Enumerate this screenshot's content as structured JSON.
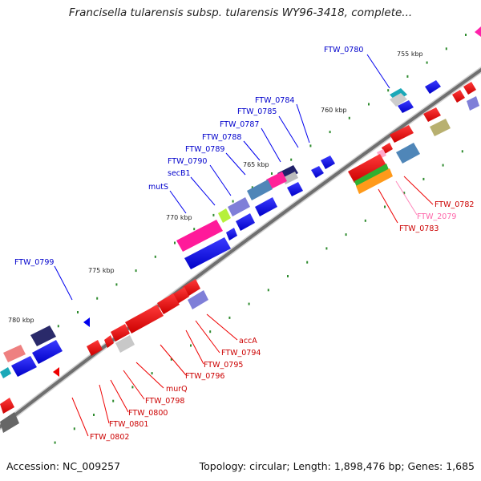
{
  "title": "Francisella tularensis subsp. tularensis WY96-3418, complete...",
  "footer": {
    "accession": "Accession: NC_009257",
    "summary": "Topology: circular; Length: 1,898,476 bp; Genes: 1,685"
  },
  "colors": {
    "forward_strand": "#0000ee",
    "reverse_strand": "#ee0000",
    "label_forward": "#0000cc",
    "label_reverse": "#cc0000",
    "label_pseudo": "#ff66aa",
    "backbone": "#777777",
    "tick": "#2e8b2e"
  },
  "kbp_labels": [
    "755 kbp",
    "760 kbp",
    "765 kbp",
    "770 kbp",
    "775 kbp",
    "780 kbp"
  ],
  "gene_labels_top": [
    "FTW_0780",
    "FTW_0784",
    "FTW_0785",
    "FTW_0787",
    "FTW_0788",
    "FTW_0789",
    "FTW_0790",
    "secB1",
    "mutS",
    "FTW_0799"
  ],
  "gene_labels_bottom": [
    "FTW_0782",
    "FTW_2079",
    "FTW_0783",
    "accA",
    "FTW_0794",
    "FTW_0795",
    "FTW_0796",
    "murQ",
    "FTW_0798",
    "FTW_0800",
    "FTW_0801",
    "FTW_0802"
  ]
}
